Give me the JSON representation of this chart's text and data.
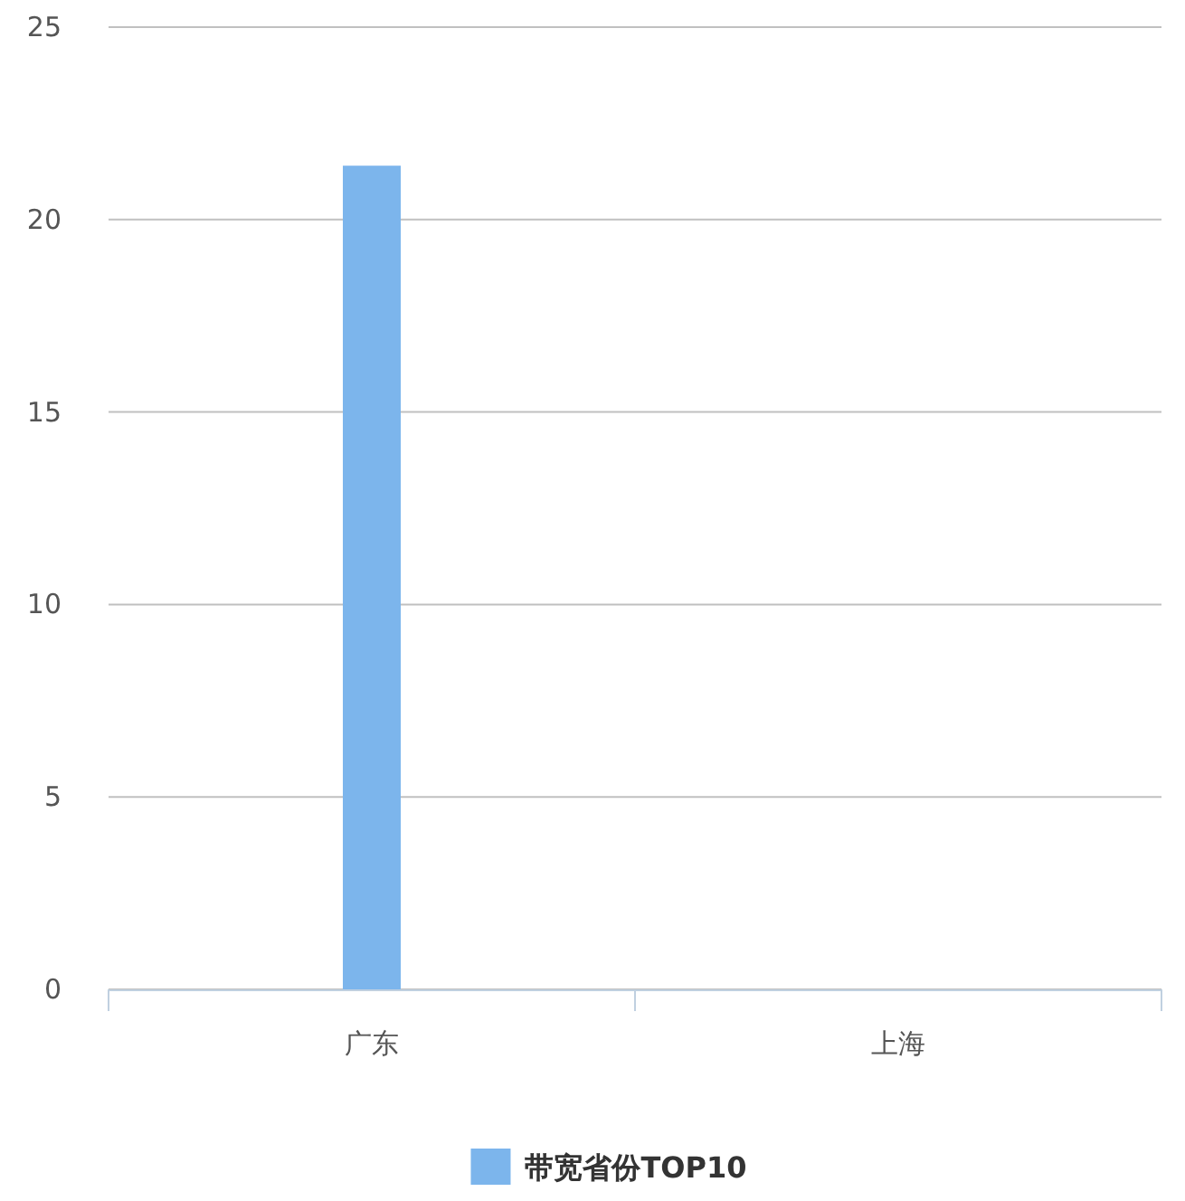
{
  "chart_data": {
    "type": "bar",
    "categories": [
      "广东",
      "上海"
    ],
    "series": [
      {
        "name": "带宽省份TOP10",
        "color": "#7cb5ec",
        "values": [
          21.4,
          0
        ]
      }
    ],
    "ylim": [
      0,
      25
    ],
    "yticks": [
      0,
      5,
      10,
      15,
      20,
      25
    ],
    "grid": "y",
    "legend": "bottom"
  }
}
